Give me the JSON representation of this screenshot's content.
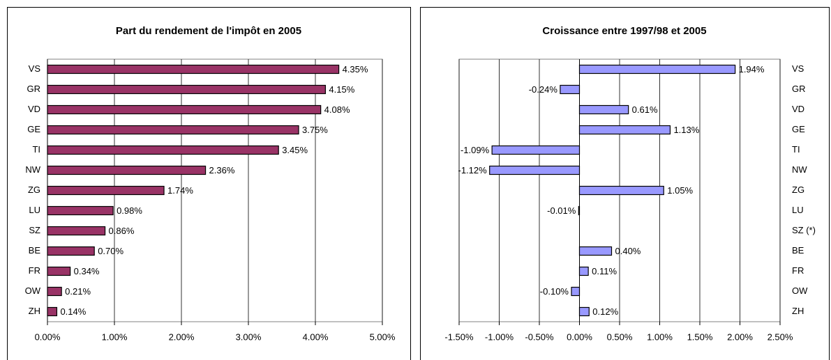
{
  "chart_data": [
    {
      "type": "bar",
      "orientation": "horizontal",
      "title": "Part du rendement de l'impôt en 2005",
      "categories": [
        "VS",
        "GR",
        "VD",
        "GE",
        "TI",
        "NW",
        "ZG",
        "LU",
        "SZ",
        "BE",
        "FR",
        "OW",
        "ZH"
      ],
      "values": [
        4.35,
        4.15,
        4.08,
        3.75,
        3.45,
        2.36,
        1.74,
        0.98,
        0.86,
        0.7,
        0.34,
        0.21,
        0.14
      ],
      "value_labels": [
        "4.35%",
        "4.15%",
        "4.08%",
        "3.75%",
        "3.45%",
        "2.36%",
        "1.74%",
        "0.98%",
        "0.86%",
        "0.70%",
        "0.34%",
        "0.21%",
        "0.14%"
      ],
      "color": "#993366",
      "xlim": [
        0,
        5
      ],
      "xticks": [
        {
          "value": 0,
          "label": "0.00%"
        },
        {
          "value": 1,
          "label": "1.00%"
        },
        {
          "value": 2,
          "label": "2.00%"
        },
        {
          "value": 3,
          "label": "3.00%"
        },
        {
          "value": 4,
          "label": "4.00%"
        },
        {
          "value": 5,
          "label": "5.00%"
        }
      ],
      "grid": true
    },
    {
      "type": "bar",
      "orientation": "horizontal",
      "title": "Croissance entre 1997/98 et 2005",
      "categories": [
        "VS",
        "GR",
        "VD",
        "GE",
        "TI",
        "NW",
        "ZG",
        "LU",
        "SZ (*)",
        "BE",
        "FR",
        "OW",
        "ZH"
      ],
      "values": [
        1.94,
        -0.24,
        0.61,
        1.13,
        -1.09,
        -1.12,
        1.05,
        -0.01,
        null,
        0.4,
        0.11,
        -0.1,
        0.12
      ],
      "value_labels": [
        "1.94%",
        "-0.24%",
        "0.61%",
        "1.13%",
        "-1.09%",
        "-1.12%",
        "1.05%",
        "-0.01%",
        null,
        "0.40%",
        "0.11%",
        "-0.10%",
        "0.12%"
      ],
      "color": "#9999ff",
      "xlim": [
        -1.5,
        2.5
      ],
      "xticks": [
        {
          "value": -1.5,
          "label": "-1.50%"
        },
        {
          "value": -1,
          "label": "-1.00%"
        },
        {
          "value": -0.5,
          "label": "-0.50%"
        },
        {
          "value": 0,
          "label": "0.00%"
        },
        {
          "value": 0.5,
          "label": "0.50%"
        },
        {
          "value": 1,
          "label": "1.00%"
        },
        {
          "value": 1.5,
          "label": "1.50%"
        },
        {
          "value": 2,
          "label": "2.00%"
        },
        {
          "value": 2.5,
          "label": "2.50%"
        }
      ],
      "grid": true
    }
  ]
}
